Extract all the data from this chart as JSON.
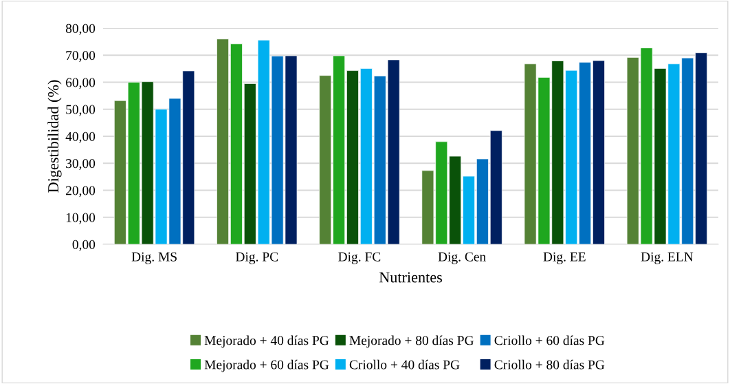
{
  "chart_data": {
    "type": "bar",
    "xlabel": "Nutrientes",
    "ylabel": "Digestibilidad (%)",
    "categories": [
      "Dig. MS",
      "Dig. PC",
      "Dig. FC",
      "Dig. Cen",
      "Dig. EE",
      "Dig. ELN"
    ],
    "series": [
      {
        "name": "Mejorado + 40 días PG",
        "color": "#548235",
        "values": [
          53.2,
          76.0,
          62.5,
          27.3,
          66.8,
          69.2
        ]
      },
      {
        "name": "Mejorado + 60 días PG",
        "color": "#1fa71f",
        "values": [
          60.0,
          74.2,
          69.8,
          38.0,
          61.8,
          72.7
        ]
      },
      {
        "name": "Mejorado + 80 días PG",
        "color": "#0a5209",
        "values": [
          60.2,
          59.5,
          64.3,
          32.6,
          67.9,
          65.1
        ]
      },
      {
        "name": "Criollo + 40 días PG",
        "color": "#00b0f0",
        "values": [
          50.0,
          75.6,
          65.1,
          25.2,
          64.4,
          66.8
        ]
      },
      {
        "name": "Criollo + 60 días PG",
        "color": "#0070c0",
        "values": [
          54.0,
          69.7,
          62.3,
          31.6,
          67.4,
          69.0
        ]
      },
      {
        "name": "Criollo + 80 días PG",
        "color": "#002060",
        "values": [
          64.2,
          69.8,
          68.3,
          42.1,
          68.0,
          70.9
        ]
      }
    ],
    "ylim": [
      0,
      80
    ],
    "yticks": [
      {
        "value": 0,
        "label": "0,00"
      },
      {
        "value": 10,
        "label": "10,00"
      },
      {
        "value": 20,
        "label": "20,00"
      },
      {
        "value": 30,
        "label": "30,00"
      },
      {
        "value": 40,
        "label": "40,00"
      },
      {
        "value": 50,
        "label": "50,00"
      },
      {
        "value": 60,
        "label": "60,00"
      },
      {
        "value": 70,
        "label": "70,00"
      },
      {
        "value": 80,
        "label": "80,00"
      }
    ],
    "grid": "y",
    "legend": "bottom"
  }
}
